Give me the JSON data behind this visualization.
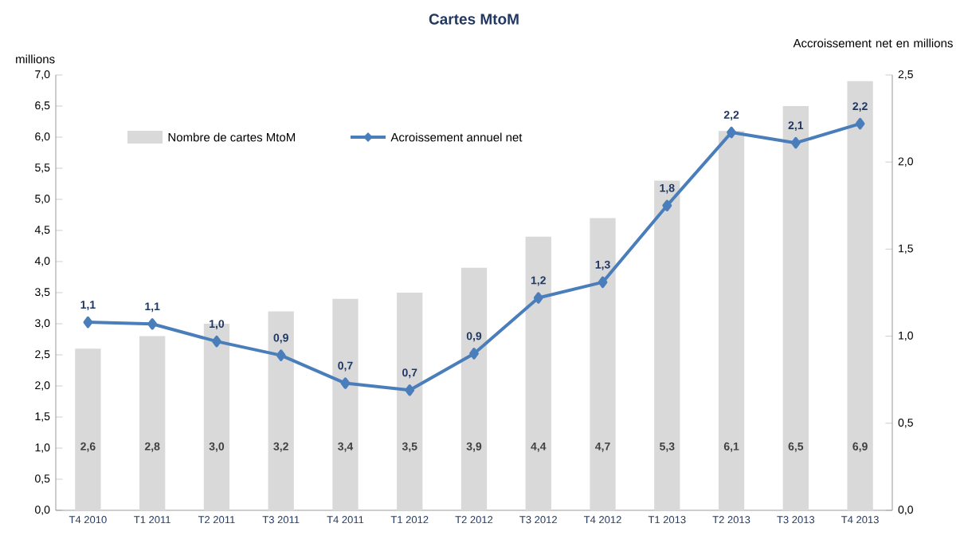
{
  "chart_data": {
    "type": "bar",
    "title": "Cartes MtoM",
    "ylabel": "millions",
    "y2label": "Accroissement net en millions",
    "categories": [
      "T4 2010",
      "T1 2011",
      "T2 2011",
      "T3 2011",
      "T4 2011",
      "T1 2012",
      "T2 2012",
      "T3 2012",
      "T4 2012",
      "T1 2013",
      "T2 2013",
      "T3 2013",
      "T4 2013"
    ],
    "series": [
      {
        "name": "Nombre de cartes MtoM",
        "color": "#d9d9d9",
        "values": [
          2.6,
          2.8,
          3.0,
          3.2,
          3.4,
          3.5,
          3.9,
          4.4,
          4.7,
          5.3,
          6.1,
          6.5,
          6.9
        ],
        "value_labels": [
          "2,6",
          "2,8",
          "3,0",
          "3,2",
          "3,4",
          "3,5",
          "3,9",
          "4,4",
          "4,7",
          "5,3",
          "6,1",
          "6,5",
          "6,9"
        ]
      },
      {
        "name": "Acroissement annuel net",
        "type": "line",
        "axis": "y2",
        "color": "#4a7ebb",
        "values": [
          1.08,
          1.07,
          0.97,
          0.89,
          0.73,
          0.69,
          0.9,
          1.22,
          1.31,
          1.75,
          2.17,
          2.11,
          2.22
        ],
        "value_labels": [
          "1,1",
          "1,1",
          "1,0",
          "0,9",
          "0,7",
          "0,7",
          "0,9",
          "1,2",
          "1,3",
          "1,8",
          "2,2",
          "2,1",
          "2,2"
        ]
      }
    ],
    "ylim": [
      0,
      7
    ],
    "yticks": [
      {
        "value": 0,
        "label": "0,0"
      },
      {
        "value": 0.5,
        "label": "0,5"
      },
      {
        "value": 1,
        "label": "1,0"
      },
      {
        "value": 1.5,
        "label": "1,5"
      },
      {
        "value": 2,
        "label": "2,0"
      },
      {
        "value": 2.5,
        "label": "2,5"
      },
      {
        "value": 3,
        "label": "3,0"
      },
      {
        "value": 3.5,
        "label": "3,5"
      },
      {
        "value": 4,
        "label": "4,0"
      },
      {
        "value": 4.5,
        "label": "4,5"
      },
      {
        "value": 5,
        "label": "5,0"
      },
      {
        "value": 5.5,
        "label": "5,5"
      },
      {
        "value": 6,
        "label": "6,0"
      },
      {
        "value": 6.5,
        "label": "6,5"
      },
      {
        "value": 7,
        "label": "7,0"
      }
    ],
    "y2lim": [
      0,
      2.5
    ],
    "y2ticks": [
      {
        "value": 0,
        "label": "0,0"
      },
      {
        "value": 0.5,
        "label": "0,5"
      },
      {
        "value": 1,
        "label": "1,0"
      },
      {
        "value": 1.5,
        "label": "1,5"
      },
      {
        "value": 2,
        "label": "2,0"
      },
      {
        "value": 2.5,
        "label": "2,5"
      }
    ],
    "legend": "top left",
    "marker": "diamond",
    "line_style": "solid"
  }
}
